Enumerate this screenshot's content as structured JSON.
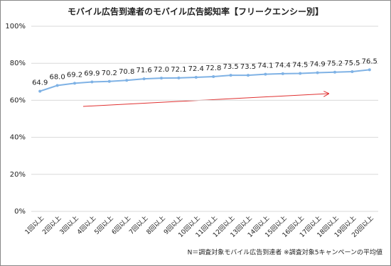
{
  "chart_data": {
    "type": "line",
    "title": "モバイル広告到達者のモバイル広告認知率【フリークエンシー別】",
    "categories": [
      "1回以上",
      "2回以上",
      "3回以上",
      "4回以上",
      "5回以上",
      "6回以上",
      "7回以上",
      "8回以上",
      "9回以上",
      "10回以上",
      "11回以上",
      "12回以上",
      "13回以上",
      "14回以上",
      "15回以上",
      "16回以上",
      "17回以上",
      "18回以上",
      "19回以上",
      "20回以上"
    ],
    "values": [
      64.9,
      68.0,
      69.2,
      69.9,
      70.2,
      70.8,
      71.6,
      72.0,
      72.1,
      72.4,
      72.8,
      73.5,
      73.5,
      74.1,
      74.4,
      74.5,
      74.9,
      75.2,
      75.5,
      76.5
    ],
    "value_labels": [
      "64.9",
      "68.0",
      "69.2",
      "69.9",
      "70.2",
      "70.8",
      "71.6",
      "72.0",
      "72.1",
      "72.4",
      "72.8",
      "73.5",
      "73.5",
      "74.1",
      "74.4",
      "74.5",
      "74.9",
      "75.2",
      "75.5",
      "76.5"
    ],
    "color": "#7fb2e5",
    "ylim": [
      0,
      100
    ],
    "yticks": [
      {
        "value": 0,
        "label": "0%"
      },
      {
        "value": 20,
        "label": "20%"
      },
      {
        "value": 40,
        "label": "40%"
      },
      {
        "value": 60,
        "label": "60%"
      },
      {
        "value": 80,
        "label": "80%"
      },
      {
        "value": 100,
        "label": "100%"
      }
    ],
    "grid": true,
    "note": "N＝調査対象モバイル広告到達者 ※調査対象5キャンペーンの平均値"
  }
}
